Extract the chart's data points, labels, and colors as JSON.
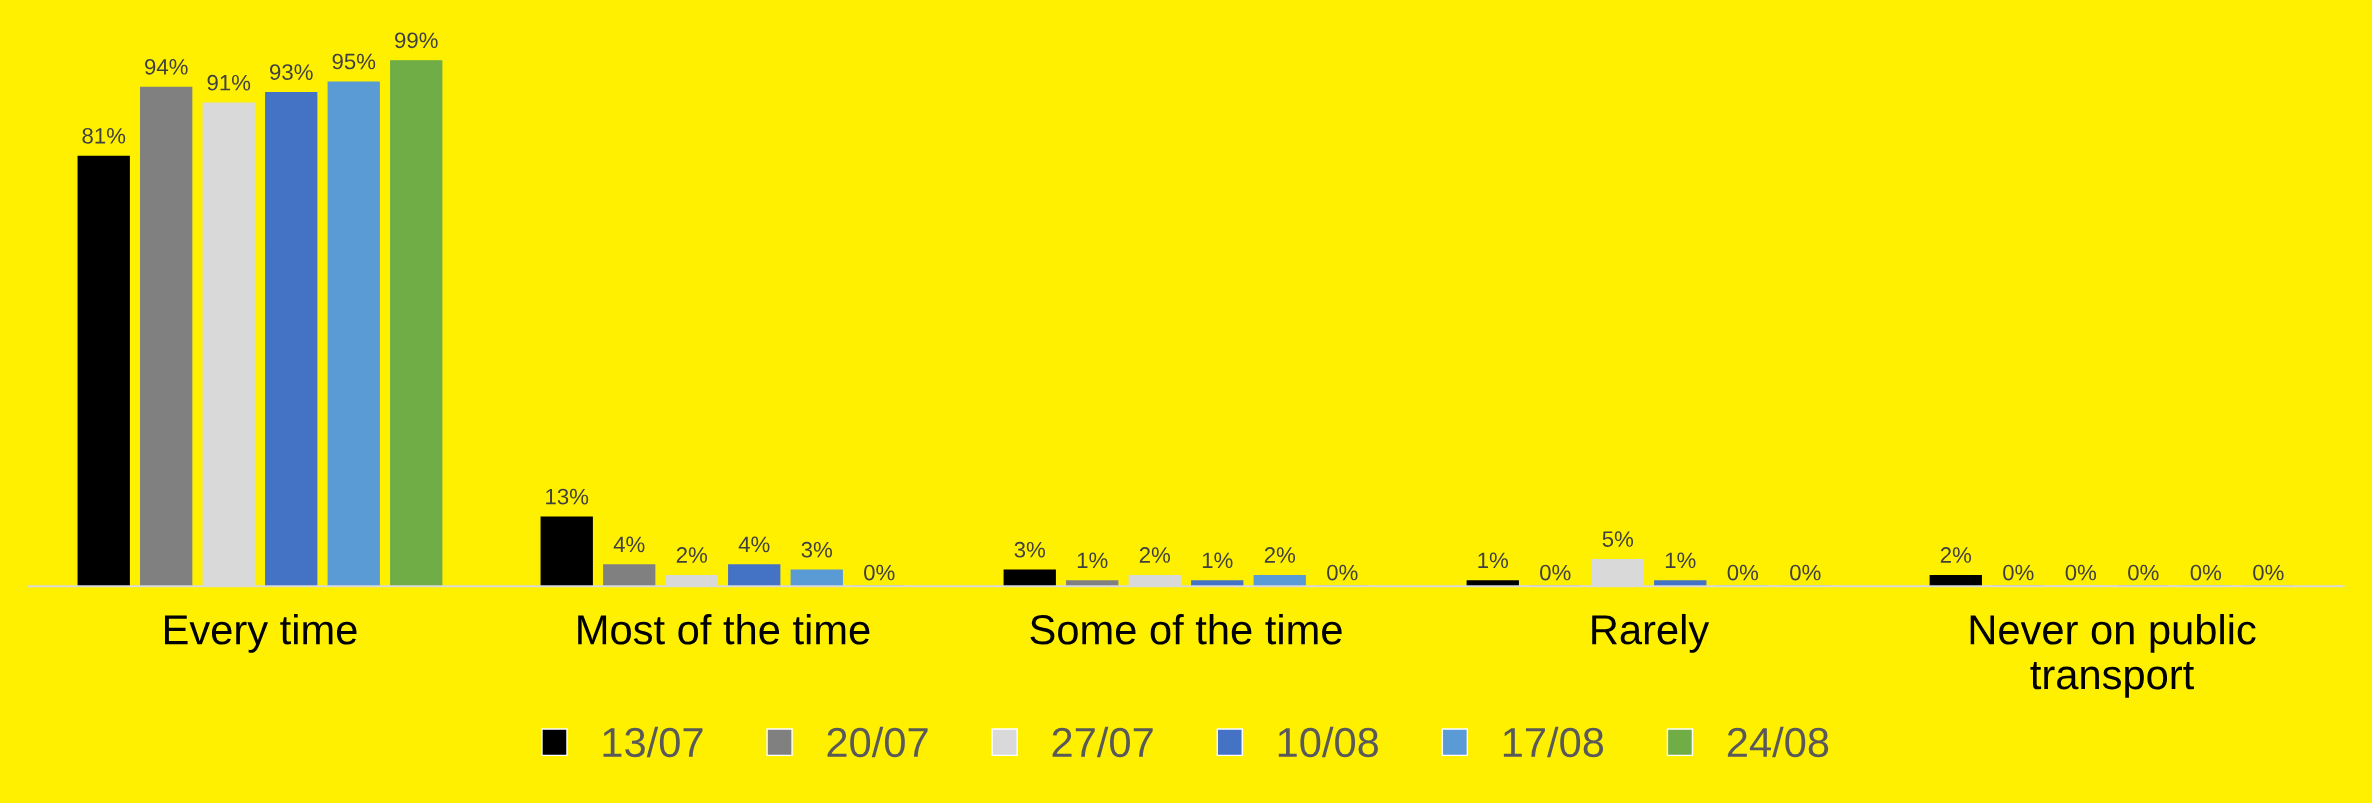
{
  "chart_data": {
    "type": "bar",
    "categories": [
      "Every time",
      "Most of the time",
      "Some of the time",
      "Rarely",
      "Never on public transport"
    ],
    "series": [
      {
        "name": "13/07",
        "color": "#000000",
        "values": [
          81,
          13,
          3,
          1,
          2
        ],
        "value_labels": [
          "81%",
          "13%",
          "3%",
          "1%",
          "2%"
        ]
      },
      {
        "name": "20/07",
        "color": "#808080",
        "values": [
          94,
          4,
          1,
          0,
          0
        ],
        "value_labels": [
          "94%",
          "4%",
          "1%",
          "0%",
          "0%"
        ]
      },
      {
        "name": "27/07",
        "color": "#d9d9d9",
        "values": [
          91,
          2,
          2,
          5,
          0
        ],
        "value_labels": [
          "91%",
          "2%",
          "2%",
          "5%",
          "0%"
        ]
      },
      {
        "name": "10/08",
        "color": "#4472c4",
        "values": [
          93,
          4,
          1,
          1,
          0
        ],
        "value_labels": [
          "93%",
          "4%",
          "1%",
          "1%",
          "0%"
        ]
      },
      {
        "name": "17/08",
        "color": "#5b9bd5",
        "values": [
          95,
          3,
          2,
          0,
          0
        ],
        "value_labels": [
          "95%",
          "3%",
          "2%",
          "0%",
          "0%"
        ]
      },
      {
        "name": "24/08",
        "color": "#70ad47",
        "values": [
          99,
          0,
          0,
          0,
          0
        ],
        "value_labels": [
          "99%",
          "0%",
          "0%",
          "0%",
          "0%"
        ]
      }
    ],
    "legend": "bottom"
  }
}
